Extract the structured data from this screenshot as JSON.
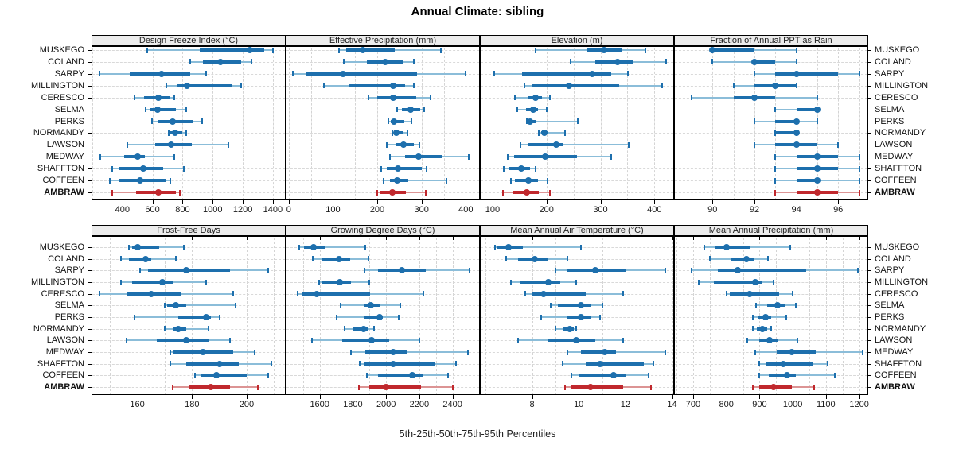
{
  "title": "Annual Climate: sibling",
  "caption": "5th-25th-50th-75th-95th Percentiles",
  "colors": {
    "series": "#1d6fad",
    "series_light": "#8bbdd9",
    "highlight": "#c0282d",
    "highlight_light": "#dc9494",
    "grid": "#d6d6d6",
    "strip_bg": "#ececec",
    "border": "#000000"
  },
  "chart_data": {
    "type": "dotplot",
    "percentiles": [
      5,
      25,
      50,
      75,
      95
    ],
    "highlight_site": "AMBRAW",
    "categories": [
      "MUSKEGO",
      "COLAND",
      "SARPY",
      "MILLINGTON",
      "CERESCO",
      "SELMA",
      "PERKS",
      "NORMANDY",
      "LAWSON",
      "MEDWAY",
      "SHAFFTON",
      "COFFEEN",
      "AMBRAW"
    ],
    "panels": [
      {
        "title": "Design Freeze Index (°C)",
        "xlim": [
          200,
          1480
        ],
        "ticks": [
          400,
          600,
          800,
          1000,
          1200,
          1400
        ],
        "grid": [
          200,
          400,
          600,
          800,
          1000,
          1200,
          1400
        ],
        "values": [
          [
            565,
            915,
            1245,
            1340,
            1400
          ],
          [
            850,
            935,
            1050,
            1190,
            1255
          ],
          [
            245,
            450,
            660,
            850,
            955
          ],
          [
            690,
            760,
            830,
            1130,
            1190
          ],
          [
            480,
            545,
            640,
            720,
            745
          ],
          [
            555,
            580,
            635,
            755,
            825
          ],
          [
            595,
            640,
            735,
            870,
            930
          ],
          [
            705,
            720,
            750,
            800,
            825
          ],
          [
            435,
            615,
            725,
            860,
            1105
          ],
          [
            255,
            410,
            500,
            550,
            745
          ],
          [
            330,
            380,
            540,
            670,
            810
          ],
          [
            315,
            375,
            515,
            690,
            720
          ],
          [
            330,
            490,
            640,
            755,
            780
          ]
        ]
      },
      {
        "title": "Effective Precipitation (mm)",
        "xlim": [
          -5,
          430
        ],
        "ticks": [
          0,
          100,
          200,
          300,
          400
        ],
        "grid": [
          0,
          50,
          100,
          150,
          200,
          250,
          300,
          350,
          400
        ],
        "values": [
          [
            113,
            130,
            168,
            240,
            344
          ],
          [
            125,
            177,
            218,
            259,
            282
          ],
          [
            10,
            40,
            122,
            290,
            400
          ],
          [
            80,
            135,
            235,
            262,
            283
          ],
          [
            180,
            200,
            235,
            288,
            320
          ],
          [
            245,
            255,
            275,
            298,
            306
          ],
          [
            225,
            230,
            237,
            262,
            278
          ],
          [
            234,
            237,
            243,
            258,
            269
          ],
          [
            222,
            241,
            259,
            282,
            295
          ],
          [
            229,
            262,
            294,
            347,
            407
          ],
          [
            209,
            221,
            246,
            300,
            312
          ],
          [
            215,
            228,
            244,
            271,
            356
          ],
          [
            200,
            205,
            234,
            265,
            310
          ]
        ]
      },
      {
        "title": "Elevation (m)",
        "xlim": [
          78,
          435
        ],
        "ticks": [
          100,
          200,
          300,
          400
        ],
        "grid": [
          100,
          150,
          200,
          250,
          300,
          350,
          400
        ],
        "values": [
          [
            179,
            276,
            306,
            340,
            384
          ],
          [
            245,
            291,
            331,
            360,
            421
          ],
          [
            103,
            155,
            285,
            320,
            351
          ],
          [
            159,
            174,
            241,
            334,
            415
          ],
          [
            142,
            167,
            179,
            191,
            207
          ],
          [
            146,
            162,
            176,
            185,
            200
          ],
          [
            163,
            166,
            170,
            180,
            258
          ],
          [
            186,
            190,
            196,
            204,
            234
          ],
          [
            152,
            166,
            218,
            230,
            353
          ],
          [
            128,
            140,
            198,
            256,
            320
          ],
          [
            120,
            129,
            153,
            170,
            179
          ],
          [
            134,
            141,
            166,
            185,
            202
          ],
          [
            119,
            139,
            164,
            185,
            207
          ]
        ]
      },
      {
        "title": "Fraction of Annual PPT as Rain",
        "xlim": [
          88.2,
          97.4
        ],
        "ticks": [
          90,
          92,
          94,
          96
        ],
        "grid": [
          89,
          90,
          91,
          92,
          93,
          94,
          95,
          96,
          97
        ],
        "values": [
          [
            90,
            90,
            90,
            92,
            94
          ],
          [
            90,
            92,
            92,
            93,
            94
          ],
          [
            92,
            93,
            94,
            96,
            97
          ],
          [
            91,
            92,
            93,
            94,
            94
          ],
          [
            89,
            91,
            92,
            93,
            95
          ],
          [
            93,
            94,
            95,
            95,
            95
          ],
          [
            92,
            93,
            94,
            94,
            95
          ],
          [
            93,
            93,
            94,
            94,
            94
          ],
          [
            92,
            93,
            94,
            95,
            96
          ],
          [
            93,
            94,
            95,
            96,
            97
          ],
          [
            93,
            94,
            95,
            96,
            97
          ],
          [
            93,
            94,
            95,
            95,
            97
          ],
          [
            93,
            94,
            95,
            96,
            97
          ]
        ]
      },
      {
        "title": "Frost-Free Days",
        "xlim": [
          143.5,
          214
        ],
        "ticks": [
          160,
          180,
          200
        ],
        "grid": [
          150,
          160,
          170,
          180,
          190,
          200,
          210
        ],
        "values": [
          [
            157,
            158,
            160,
            168,
            177
          ],
          [
            154,
            157,
            163,
            165,
            174
          ],
          [
            161,
            164,
            178,
            194,
            208
          ],
          [
            154,
            158,
            169,
            173,
            185
          ],
          [
            146,
            156,
            165,
            176,
            195
          ],
          [
            170,
            171,
            174,
            178,
            196
          ],
          [
            159,
            175,
            185,
            187,
            190
          ],
          [
            170,
            173,
            175,
            178,
            186
          ],
          [
            156,
            167,
            178,
            186,
            194
          ],
          [
            172,
            173,
            184,
            195,
            203
          ],
          [
            172,
            178,
            190,
            197,
            209
          ],
          [
            181,
            183,
            189,
            200,
            208
          ],
          [
            173,
            179,
            187,
            194,
            204
          ]
        ]
      },
      {
        "title": "Growing Degree Days (°C)",
        "xlim": [
          1400,
          2560
        ],
        "ticks": [
          1600,
          1800,
          2000,
          2200,
          2400
        ],
        "grid": [
          1500,
          1600,
          1700,
          1800,
          1900,
          2000,
          2100,
          2200,
          2300,
          2400,
          2500
        ],
        "values": [
          [
            1475,
            1505,
            1565,
            1630,
            1875
          ],
          [
            1560,
            1615,
            1715,
            1785,
            1895
          ],
          [
            1870,
            1950,
            2095,
            2240,
            2500
          ],
          [
            1595,
            1615,
            1720,
            1790,
            1900
          ],
          [
            1465,
            1490,
            1580,
            1905,
            2225
          ],
          [
            1725,
            1870,
            1910,
            1960,
            2085
          ],
          [
            1700,
            1870,
            1960,
            1980,
            2075
          ],
          [
            1750,
            1800,
            1865,
            1895,
            1925
          ],
          [
            1555,
            1735,
            1915,
            2020,
            2200
          ],
          [
            1790,
            1875,
            2040,
            2130,
            2495
          ],
          [
            1840,
            1870,
            2040,
            2295,
            2420
          ],
          [
            1885,
            1950,
            2155,
            2225,
            2375
          ],
          [
            1835,
            1900,
            2000,
            2210,
            2400
          ]
        ]
      },
      {
        "title": "Mean Annual Air Temperature (°C)",
        "xlim": [
          5.8,
          14.05
        ],
        "ticks": [
          8,
          10,
          12,
          14
        ],
        "grid": [
          6,
          7,
          8,
          9,
          10,
          11,
          12,
          13,
          14
        ],
        "values": [
          [
            6.4,
            6.5,
            7.0,
            7.6,
            10.1
          ],
          [
            6.9,
            7.4,
            8.1,
            8.7,
            9.5
          ],
          [
            9.0,
            9.5,
            10.7,
            12.0,
            13.7
          ],
          [
            7.1,
            7.5,
            8.7,
            9.2,
            9.9
          ],
          [
            7.7,
            8.0,
            8.5,
            10.3,
            11.9
          ],
          [
            8.8,
            9.1,
            10.1,
            10.5,
            11.0
          ],
          [
            8.4,
            9.5,
            10.1,
            10.5,
            10.9
          ],
          [
            9.0,
            9.3,
            9.6,
            9.8,
            9.9
          ],
          [
            7.4,
            8.7,
            9.9,
            10.7,
            11.9
          ],
          [
            9.5,
            10.1,
            11.1,
            11.6,
            13.7
          ],
          [
            9.3,
            10.3,
            10.9,
            12.8,
            13.2
          ],
          [
            9.7,
            10.0,
            11.5,
            12.0,
            13.0
          ],
          [
            9.4,
            9.7,
            10.5,
            11.9,
            13.1
          ]
        ]
      },
      {
        "title": "Mean Annual Precipitation (mm)",
        "xlim": [
          645,
          1225
        ],
        "ticks": [
          700,
          800,
          900,
          1000,
          1100,
          1200
        ],
        "grid": [
          650,
          700,
          750,
          800,
          850,
          900,
          950,
          1000,
          1050,
          1100,
          1150,
          1200
        ],
        "values": [
          [
            733,
            766,
            800,
            870,
            993
          ],
          [
            750,
            815,
            860,
            885,
            925
          ],
          [
            695,
            775,
            835,
            1040,
            1195
          ],
          [
            717,
            763,
            888,
            910,
            943
          ],
          [
            800,
            810,
            870,
            960,
            1000
          ],
          [
            890,
            923,
            953,
            976,
            1010
          ],
          [
            880,
            896,
            917,
            935,
            980
          ],
          [
            880,
            891,
            909,
            923,
            935
          ],
          [
            862,
            899,
            931,
            956,
            1015
          ],
          [
            888,
            951,
            996,
            1069,
            1210
          ],
          [
            899,
            921,
            972,
            1062,
            1105
          ],
          [
            899,
            927,
            982,
            1009,
            1127
          ],
          [
            880,
            899,
            943,
            998,
            1064
          ]
        ]
      }
    ]
  }
}
